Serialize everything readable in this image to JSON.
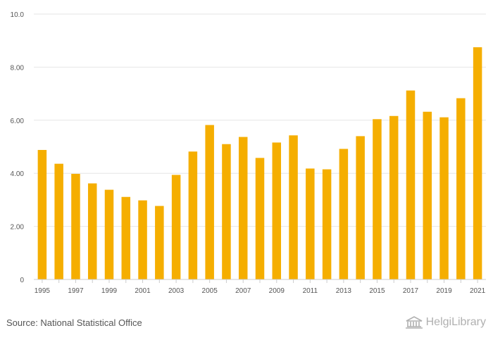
{
  "chart_data": {
    "type": "bar",
    "title": "",
    "xlabel": "",
    "ylabel": "",
    "ylim": [
      0,
      10
    ],
    "yticks": [
      0,
      2,
      4,
      6,
      8,
      10
    ],
    "ytick_labels": [
      "0",
      "2.00",
      "4.00",
      "6.00",
      "8.00",
      "10.0"
    ],
    "categories": [
      "1995",
      "1996",
      "1997",
      "1998",
      "1999",
      "2000",
      "2001",
      "2002",
      "2003",
      "2004",
      "2005",
      "2006",
      "2007",
      "2008",
      "2009",
      "2010",
      "2011",
      "2012",
      "2013",
      "2014",
      "2015",
      "2016",
      "2017",
      "2018",
      "2019",
      "2020",
      "2021"
    ],
    "xtick_labels": [
      "1995",
      "",
      "1997",
      "",
      "1999",
      "",
      "2001",
      "",
      "2003",
      "",
      "2005",
      "",
      "2007",
      "",
      "2009",
      "",
      "2011",
      "",
      "2013",
      "",
      "2015",
      "",
      "2017",
      "",
      "2019",
      "",
      "2021"
    ],
    "values": [
      4.88,
      4.36,
      3.98,
      3.62,
      3.38,
      3.11,
      2.98,
      2.77,
      3.94,
      4.82,
      5.82,
      5.1,
      5.37,
      4.58,
      5.16,
      5.43,
      4.18,
      4.15,
      4.92,
      5.4,
      6.04,
      6.16,
      7.12,
      6.32,
      6.11,
      6.83,
      8.75
    ],
    "bar_color": "#F5AE00",
    "grid": true
  },
  "footer": {
    "source": "Source: National Statistical Office",
    "brand": "HelgiLibrary"
  },
  "colors": {
    "grid": "#e6e6e6",
    "axis": "#cccccc",
    "text": "#555555"
  }
}
